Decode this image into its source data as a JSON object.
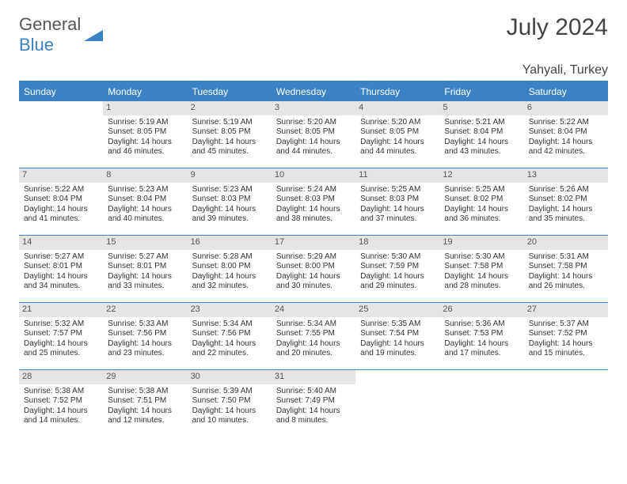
{
  "brand": {
    "text1": "General",
    "text2": "Blue"
  },
  "title": "July 2024",
  "location": "Yahyali, Turkey",
  "colors": {
    "accent": "#3b82c4",
    "header_bg": "#3b82c4",
    "daynum_bg": "#e5e5e5",
    "text": "#333333"
  },
  "weekdays": [
    "Sunday",
    "Monday",
    "Tuesday",
    "Wednesday",
    "Thursday",
    "Friday",
    "Saturday"
  ],
  "leading_blanks": 1,
  "days": [
    {
      "n": 1,
      "sunrise": "5:19 AM",
      "sunset": "8:05 PM",
      "daylight": "14 hours and 46 minutes."
    },
    {
      "n": 2,
      "sunrise": "5:19 AM",
      "sunset": "8:05 PM",
      "daylight": "14 hours and 45 minutes."
    },
    {
      "n": 3,
      "sunrise": "5:20 AM",
      "sunset": "8:05 PM",
      "daylight": "14 hours and 44 minutes."
    },
    {
      "n": 4,
      "sunrise": "5:20 AM",
      "sunset": "8:05 PM",
      "daylight": "14 hours and 44 minutes."
    },
    {
      "n": 5,
      "sunrise": "5:21 AM",
      "sunset": "8:04 PM",
      "daylight": "14 hours and 43 minutes."
    },
    {
      "n": 6,
      "sunrise": "5:22 AM",
      "sunset": "8:04 PM",
      "daylight": "14 hours and 42 minutes."
    },
    {
      "n": 7,
      "sunrise": "5:22 AM",
      "sunset": "8:04 PM",
      "daylight": "14 hours and 41 minutes."
    },
    {
      "n": 8,
      "sunrise": "5:23 AM",
      "sunset": "8:04 PM",
      "daylight": "14 hours and 40 minutes."
    },
    {
      "n": 9,
      "sunrise": "5:23 AM",
      "sunset": "8:03 PM",
      "daylight": "14 hours and 39 minutes."
    },
    {
      "n": 10,
      "sunrise": "5:24 AM",
      "sunset": "8:03 PM",
      "daylight": "14 hours and 38 minutes."
    },
    {
      "n": 11,
      "sunrise": "5:25 AM",
      "sunset": "8:03 PM",
      "daylight": "14 hours and 37 minutes."
    },
    {
      "n": 12,
      "sunrise": "5:25 AM",
      "sunset": "8:02 PM",
      "daylight": "14 hours and 36 minutes."
    },
    {
      "n": 13,
      "sunrise": "5:26 AM",
      "sunset": "8:02 PM",
      "daylight": "14 hours and 35 minutes."
    },
    {
      "n": 14,
      "sunrise": "5:27 AM",
      "sunset": "8:01 PM",
      "daylight": "14 hours and 34 minutes."
    },
    {
      "n": 15,
      "sunrise": "5:27 AM",
      "sunset": "8:01 PM",
      "daylight": "14 hours and 33 minutes."
    },
    {
      "n": 16,
      "sunrise": "5:28 AM",
      "sunset": "8:00 PM",
      "daylight": "14 hours and 32 minutes."
    },
    {
      "n": 17,
      "sunrise": "5:29 AM",
      "sunset": "8:00 PM",
      "daylight": "14 hours and 30 minutes."
    },
    {
      "n": 18,
      "sunrise": "5:30 AM",
      "sunset": "7:59 PM",
      "daylight": "14 hours and 29 minutes."
    },
    {
      "n": 19,
      "sunrise": "5:30 AM",
      "sunset": "7:58 PM",
      "daylight": "14 hours and 28 minutes."
    },
    {
      "n": 20,
      "sunrise": "5:31 AM",
      "sunset": "7:58 PM",
      "daylight": "14 hours and 26 minutes."
    },
    {
      "n": 21,
      "sunrise": "5:32 AM",
      "sunset": "7:57 PM",
      "daylight": "14 hours and 25 minutes."
    },
    {
      "n": 22,
      "sunrise": "5:33 AM",
      "sunset": "7:56 PM",
      "daylight": "14 hours and 23 minutes."
    },
    {
      "n": 23,
      "sunrise": "5:34 AM",
      "sunset": "7:56 PM",
      "daylight": "14 hours and 22 minutes."
    },
    {
      "n": 24,
      "sunrise": "5:34 AM",
      "sunset": "7:55 PM",
      "daylight": "14 hours and 20 minutes."
    },
    {
      "n": 25,
      "sunrise": "5:35 AM",
      "sunset": "7:54 PM",
      "daylight": "14 hours and 19 minutes."
    },
    {
      "n": 26,
      "sunrise": "5:36 AM",
      "sunset": "7:53 PM",
      "daylight": "14 hours and 17 minutes."
    },
    {
      "n": 27,
      "sunrise": "5:37 AM",
      "sunset": "7:52 PM",
      "daylight": "14 hours and 15 minutes."
    },
    {
      "n": 28,
      "sunrise": "5:38 AM",
      "sunset": "7:52 PM",
      "daylight": "14 hours and 14 minutes."
    },
    {
      "n": 29,
      "sunrise": "5:38 AM",
      "sunset": "7:51 PM",
      "daylight": "14 hours and 12 minutes."
    },
    {
      "n": 30,
      "sunrise": "5:39 AM",
      "sunset": "7:50 PM",
      "daylight": "14 hours and 10 minutes."
    },
    {
      "n": 31,
      "sunrise": "5:40 AM",
      "sunset": "7:49 PM",
      "daylight": "14 hours and 8 minutes."
    }
  ],
  "labels": {
    "sunrise": "Sunrise:",
    "sunset": "Sunset:",
    "daylight": "Daylight:"
  }
}
